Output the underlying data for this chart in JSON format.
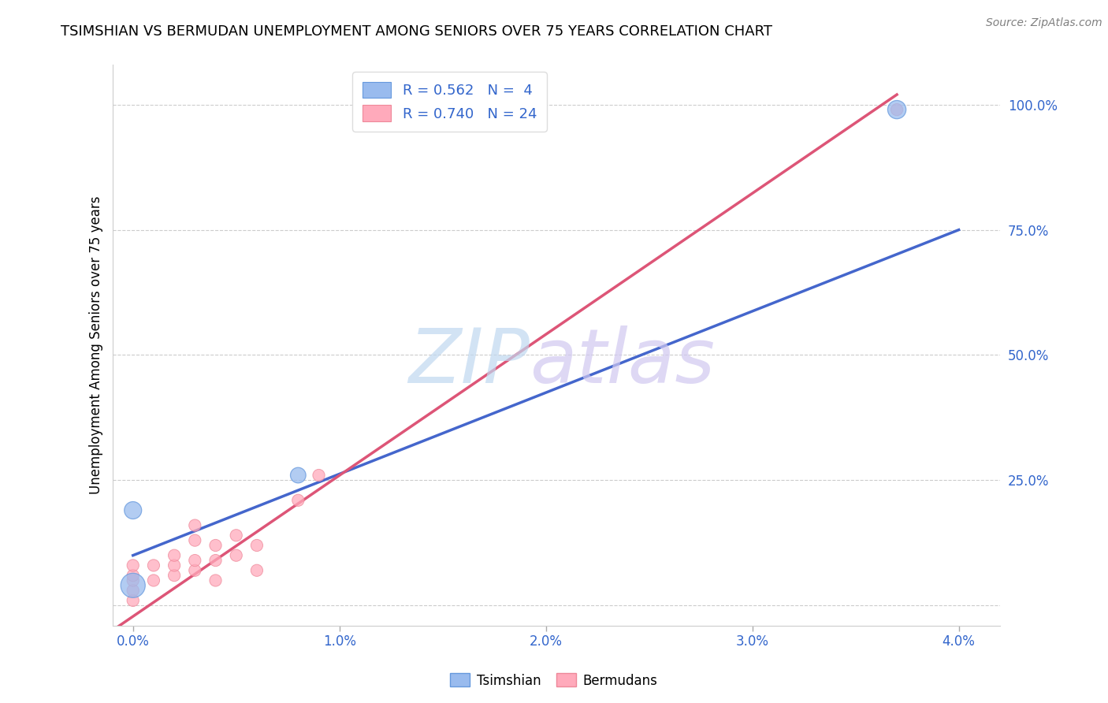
{
  "title": "TSIMSHIAN VS BERMUDAN UNEMPLOYMENT AMONG SENIORS OVER 75 YEARS CORRELATION CHART",
  "source": "Source: ZipAtlas.com",
  "ylabel": "Unemployment Among Seniors over 75 years",
  "background_color": "#ffffff",
  "tsimshian": {
    "label": "Tsimshian",
    "color": "#6699dd",
    "fill_color": "#99bbee",
    "edge_color": "#6699dd",
    "R": 0.562,
    "N": 4,
    "points_x": [
      0.0,
      0.0,
      0.008,
      0.037
    ],
    "points_y": [
      0.04,
      0.19,
      0.26,
      0.99
    ],
    "sizes": [
      500,
      250,
      200,
      280
    ],
    "line_x0": 0.0,
    "line_y0": 0.1,
    "line_x1": 0.04,
    "line_y1": 0.75,
    "line_color": "#4466cc"
  },
  "bermudans": {
    "label": "Bermudans",
    "color": "#ee8899",
    "fill_color": "#ffaabb",
    "edge_color": "#ee8899",
    "R": 0.74,
    "N": 24,
    "points_x": [
      0.0,
      0.0,
      0.0,
      0.0,
      0.0,
      0.001,
      0.001,
      0.002,
      0.002,
      0.002,
      0.003,
      0.003,
      0.003,
      0.003,
      0.004,
      0.004,
      0.004,
      0.005,
      0.005,
      0.006,
      0.006,
      0.008,
      0.009,
      0.037
    ],
    "points_y": [
      0.01,
      0.03,
      0.05,
      0.06,
      0.08,
      0.05,
      0.08,
      0.06,
      0.08,
      0.1,
      0.07,
      0.09,
      0.13,
      0.16,
      0.05,
      0.09,
      0.12,
      0.1,
      0.14,
      0.07,
      0.12,
      0.21,
      0.26,
      0.99
    ],
    "sizes": [
      120,
      120,
      120,
      120,
      120,
      120,
      120,
      120,
      120,
      120,
      120,
      120,
      120,
      120,
      120,
      120,
      120,
      120,
      120,
      120,
      120,
      120,
      120,
      120
    ],
    "line_x0": -0.001,
    "line_y0": -0.05,
    "line_x1": 0.037,
    "line_y1": 1.02,
    "line_color": "#dd5577"
  },
  "xlim": [
    -0.001,
    0.042
  ],
  "ylim": [
    -0.04,
    1.08
  ],
  "xticks": [
    0.0,
    0.01,
    0.02,
    0.03,
    0.04
  ],
  "xticklabels": [
    "0.0%",
    "1.0%",
    "2.0%",
    "3.0%",
    "4.0%"
  ],
  "yticks": [
    0.0,
    0.25,
    0.5,
    0.75,
    1.0
  ],
  "yticklabels": [
    "",
    "25.0%",
    "50.0%",
    "75.0%",
    "100.0%"
  ],
  "legend_R_color": "#3366cc",
  "grid_color": "#cccccc",
  "axis_label_color": "#3366cc",
  "title_fontsize": 13,
  "source_fontsize": 10,
  "watermark_ZIP_color": "#c0d8f0",
  "watermark_atlas_color": "#d0c8f0"
}
